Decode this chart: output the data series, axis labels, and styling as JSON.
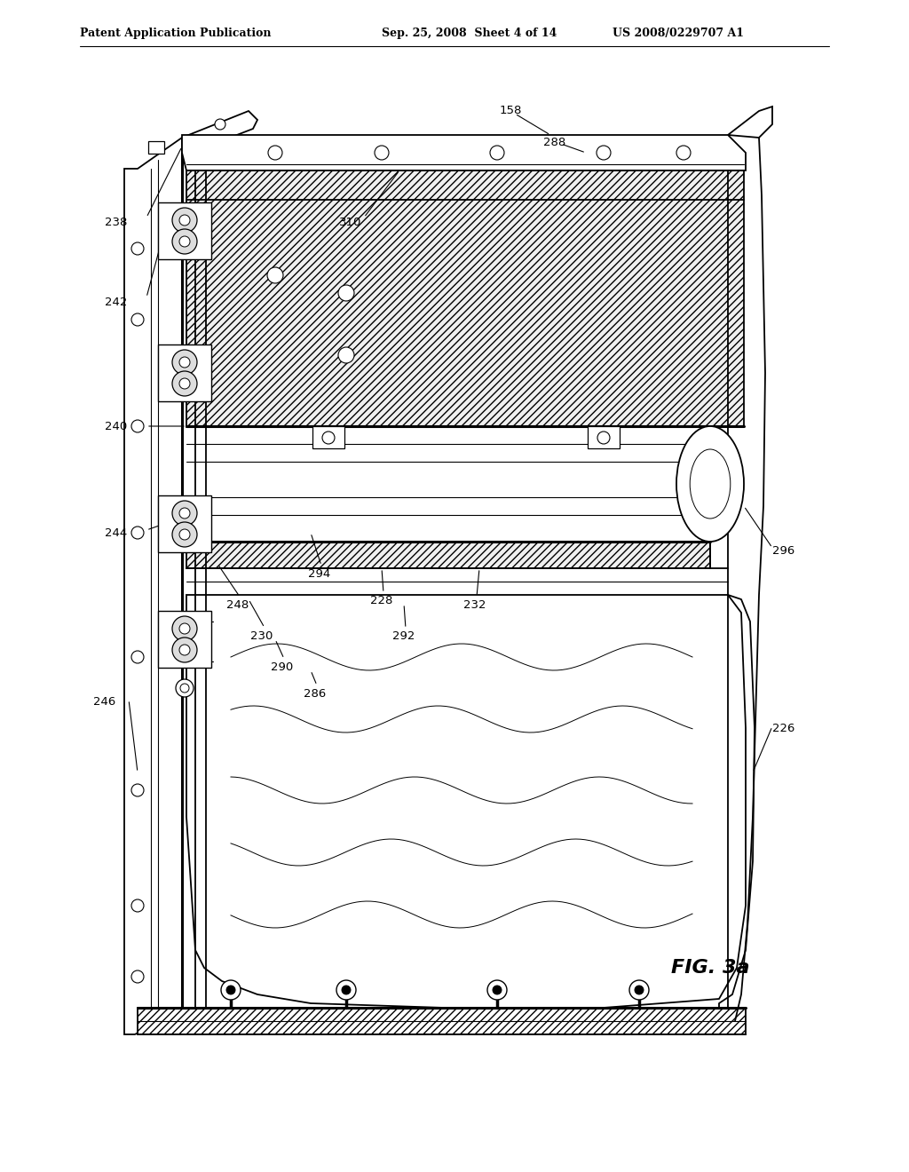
{
  "title_left": "Patent Application Publication",
  "title_center": "Sep. 25, 2008  Sheet 4 of 14",
  "title_right": "US 2008/0229707 A1",
  "fig_label": "FIG. 3a",
  "bg_color": "#ffffff"
}
